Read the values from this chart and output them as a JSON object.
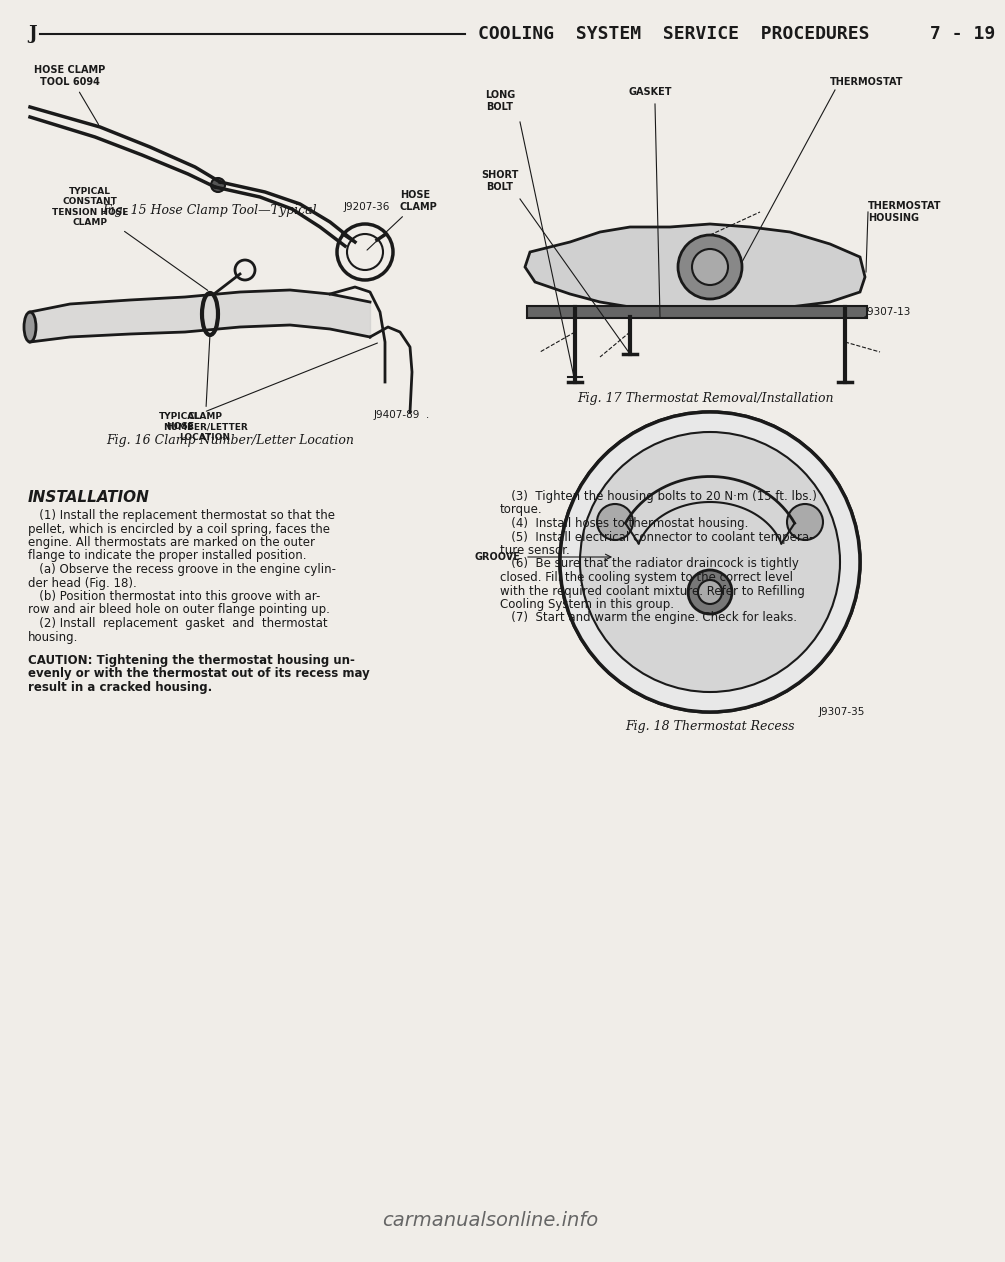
{
  "bg_color": "#f5f5f0",
  "page_color": "#f0ede8",
  "header_line_color": "#1a1a1a",
  "header_left": "J",
  "header_center": "COOLING  SYSTEM  SERVICE  PROCEDURES",
  "header_right": "7 - 19",
  "header_font_size": 13,
  "watermark": "carmanualsonline.info",
  "fig16_caption": "Fig. 16 Clamp Number/Letter Location",
  "fig17_caption": "Fig. 17 Thermostat Removal/Installation",
  "fig18_caption": "Fig. 18 Thermostat Recess",
  "installation_title": "INSTALLATION",
  "body_text_left": [
    "   (1) Install the replacement thermostat so that the",
    "pellet, which is encircled by a coil spring, faces the",
    "engine. All thermostats are marked on the outer",
    "flange to indicate the proper installed position.",
    "   (a) Observe the recess groove in the engine cylin-",
    "der head (Fig. 18).",
    "   (b) Position thermostat into this groove with ar-",
    "row and air bleed hole on outer flange pointing up.",
    "   (2) Install  replacement  gasket  and  thermostat",
    "housing."
  ],
  "caution_text": [
    "CAUTION: Tightening the thermostat housing un-",
    "evenly or with the thermostat out of its recess may",
    "result in a cracked housing."
  ],
  "body_text_right": [
    "   (3)  Tighten the housing bolts to 20 N·m (15 ft. lbs.)",
    "torque.",
    "   (4)  Install hoses to thermostat housing.",
    "   (5)  Install electrical connector to coolant tempera-",
    "ture sensor.",
    "   (6)  Be sure that the radiator draincock is tightly",
    "closed. Fill the cooling system to the correct level",
    "with the required coolant mixture. Refer to Refilling",
    "Cooling System in this group.",
    "   (7)  Start and warm the engine. Check for leaks."
  ],
  "label_hose_clamp_tool": "HOSE CLAMP\nTOOL 6094",
  "label_hose_clamp": "HOSE\nCLAMP",
  "label_typical_constant": "TYPICAL\nCONSTANT\nTENSION HOSE\nCLAMP",
  "label_typical_hose": "TYPICAL\nHOSE",
  "label_clamp_number": "CLAMP\nNUMBER/LETTER\nLOCATION",
  "label_j9407_89": "J9407-89  .",
  "label_long_bolt": "LONG\nBOLT",
  "label_gasket": "GASKET",
  "label_thermostat": "THERMOSTAT",
  "label_thermostat_housing": "THERMOSTAT\nHOUSING",
  "label_short_bolt": "SHORT\nBOLT",
  "label_j9307_13": "J9307-13",
  "label_groove": "GROOVE",
  "label_j9307_35": "J9307-35",
  "fig15_ref": "J9207-36",
  "fig15_caption": "Fig. 15 Hose Clamp Tool—Typical",
  "fig16_ref": "J9407-89",
  "text_color": "#1a1a1a",
  "font_size_body": 8.5,
  "font_size_caption": 9,
  "font_size_label": 7
}
